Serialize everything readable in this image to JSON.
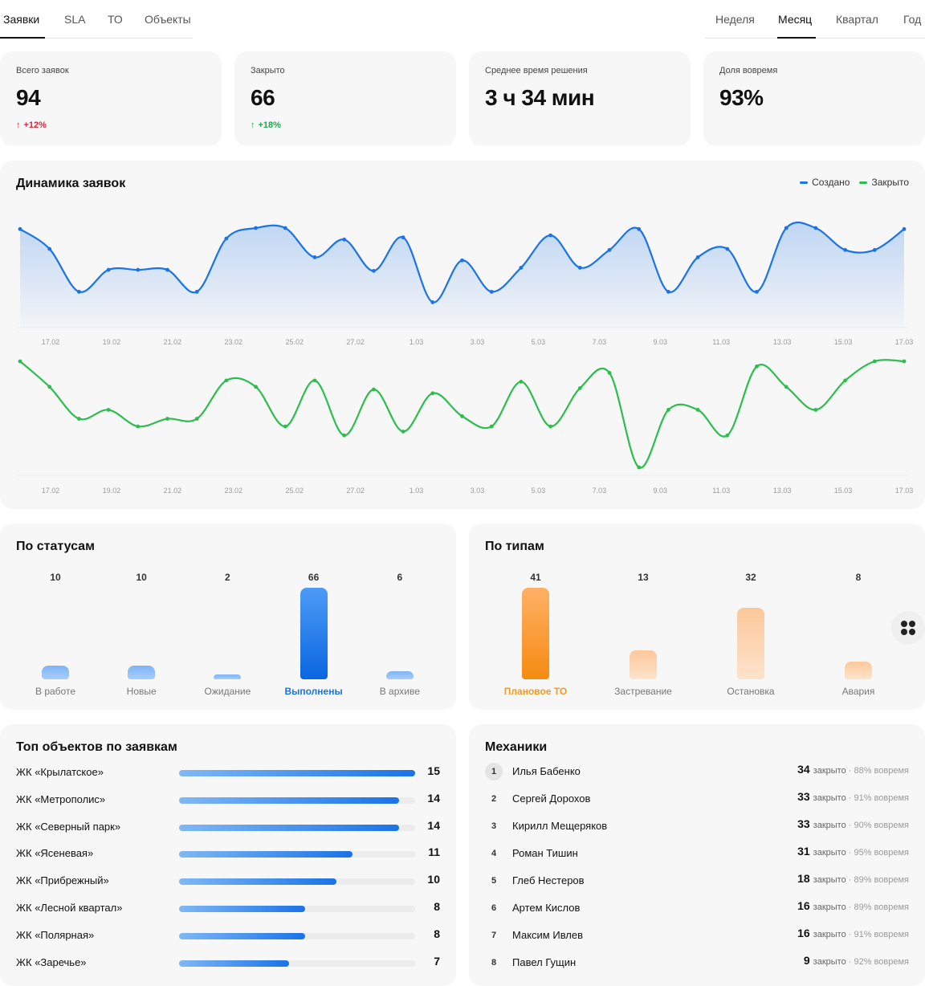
{
  "tabs_left": [
    {
      "label": "Заявки",
      "active": true
    },
    {
      "label": "SLA",
      "active": false
    },
    {
      "label": "ТО",
      "active": false
    },
    {
      "label": "Объекты",
      "active": false
    }
  ],
  "tabs_right": [
    {
      "label": "Неделя",
      "active": false
    },
    {
      "label": "Месяц",
      "active": true
    },
    {
      "label": "Квартал",
      "active": false
    },
    {
      "label": "Год",
      "active": false
    }
  ],
  "kpis": [
    {
      "label": "Всего заявок",
      "value": "94",
      "delta": "+12%",
      "delta_color": "#e0243c"
    },
    {
      "label": "Закрыто",
      "value": "66",
      "delta": "+18%",
      "delta_color": "#1fa84a"
    },
    {
      "label": "Среднее время решения",
      "value": "3 ч 34 мин",
      "delta": "",
      "delta_color": ""
    },
    {
      "label": "Доля вовремя",
      "value": "93%",
      "delta": "",
      "delta_color": ""
    }
  ],
  "dynamics": {
    "title": "Динамика заявок",
    "legend": [
      {
        "name": "Создано",
        "color": "#1a73e8"
      },
      {
        "name": "Закрыто",
        "color": "#2dbd4e"
      }
    ]
  },
  "chart_data": [
    {
      "type": "area",
      "x_ticks": [
        "17.02",
        "19.02",
        "21.02",
        "23.02",
        "25.02",
        "27.02",
        "1.03",
        "3.03",
        "5.03",
        "7.03",
        "9.03",
        "11.03",
        "13.03",
        "15.03",
        "17.03"
      ],
      "series": [
        {
          "name": "Создано",
          "color": "#1a73e8",
          "values": [
            8.2,
            6.3,
            2.2,
            4.3,
            4.3,
            4.3,
            2.2,
            7.3,
            8.3,
            8.3,
            5.5,
            7.2,
            4.2,
            7.4,
            1.2,
            5.2,
            2.2,
            4.5,
            7.6,
            4.5,
            6.2,
            8.2,
            2.2,
            5.5,
            6.3,
            2.2,
            8.3,
            8.3,
            6.2,
            6.2,
            8.2
          ]
        }
      ]
    },
    {
      "type": "line",
      "x_ticks": [
        "17.02",
        "19.02",
        "21.02",
        "23.02",
        "25.02",
        "27.02",
        "1.03",
        "3.03",
        "5.03",
        "7.03",
        "9.03",
        "11.03",
        "13.03",
        "15.03",
        "17.03"
      ],
      "series": [
        {
          "name": "Закрыто",
          "color": "#2dbd4e",
          "values": [
            8.3,
            6.3,
            3.8,
            4.5,
            3.2,
            3.8,
            3.8,
            6.8,
            6.3,
            3.2,
            6.8,
            2.5,
            6.1,
            2.8,
            5.8,
            4.0,
            3.2,
            6.7,
            3.2,
            6.2,
            7.4,
            0.0,
            4.5,
            4.5,
            2.5,
            7.9,
            6.3,
            4.5,
            6.8,
            8.3,
            8.3
          ]
        }
      ]
    },
    {
      "type": "bar",
      "title": "По статусам",
      "categories": [
        "В работе",
        "Новые",
        "Ожидание",
        "Выполнены",
        "В архиве"
      ],
      "values": [
        10,
        10,
        2,
        66,
        6
      ],
      "highlight": "Выполнены"
    },
    {
      "type": "bar",
      "title": "По типам",
      "categories": [
        "Плановое ТО",
        "Застревание",
        "Остановка",
        "Авария"
      ],
      "values": [
        41,
        13,
        32,
        8
      ],
      "highlight": "Плановое ТО"
    }
  ],
  "top_objects": {
    "title": "Топ объектов по заявкам",
    "max": 15,
    "items": [
      {
        "name": "ЖК «Крылатское»",
        "value": 15
      },
      {
        "name": "ЖК «Метрополис»",
        "value": 14
      },
      {
        "name": "ЖК «Северный парк»",
        "value": 14
      },
      {
        "name": "ЖК «Ясеневая»",
        "value": 11
      },
      {
        "name": "ЖК «Прибрежный»",
        "value": 10
      },
      {
        "name": "ЖК «Лесной квартал»",
        "value": 8
      },
      {
        "name": "ЖК «Полярная»",
        "value": 8
      },
      {
        "name": "ЖК «Заречье»",
        "value": 7
      }
    ]
  },
  "mechanics": {
    "title": "Механики",
    "closed_word": "закрыто",
    "items": [
      {
        "rank": "1",
        "name": "Илья Бабенко",
        "closed": "34",
        "ontime": "· 88% вовремя"
      },
      {
        "rank": "2",
        "name": "Сергей Дорохов",
        "closed": "33",
        "ontime": "· 91% вовремя"
      },
      {
        "rank": "3",
        "name": "Кирилл Мещеряков",
        "closed": "33",
        "ontime": "· 90% вовремя"
      },
      {
        "rank": "4",
        "name": "Роман Тишин",
        "closed": "31",
        "ontime": "· 95% вовремя"
      },
      {
        "rank": "5",
        "name": "Глеб Нестеров",
        "closed": "18",
        "ontime": "· 89% вовремя"
      },
      {
        "rank": "6",
        "name": "Артем Кислов",
        "closed": "16",
        "ontime": "· 89% вовремя"
      },
      {
        "rank": "7",
        "name": "Максим Ивлев",
        "closed": "16",
        "ontime": "· 91% вовремя"
      },
      {
        "rank": "8",
        "name": "Павел Гущин",
        "closed": "9",
        "ontime": "· 92% вовремя"
      }
    ]
  },
  "colors": {
    "blue": "#1a73e8",
    "green": "#2dbd4e",
    "orange": "#f59a1c"
  },
  "icons": {
    "fab": "apps-icon"
  }
}
